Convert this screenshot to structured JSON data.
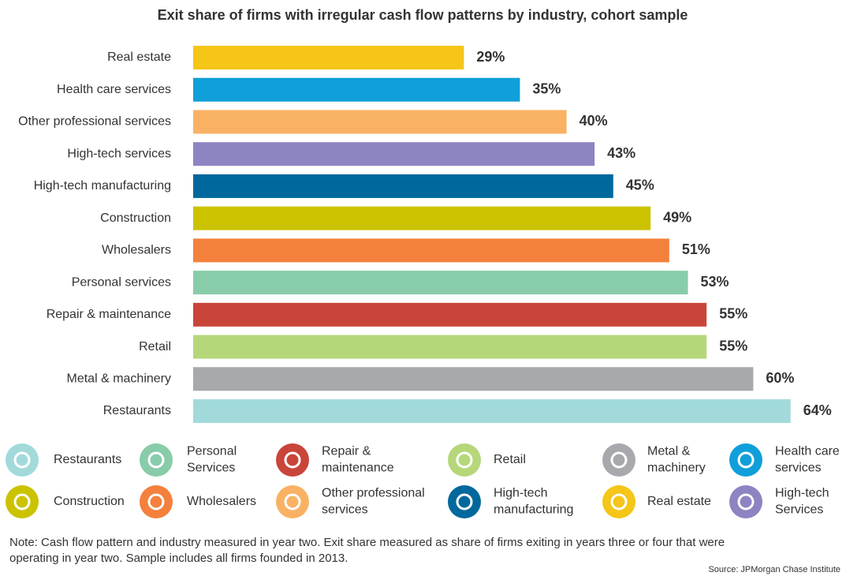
{
  "chart_data": {
    "type": "hbar",
    "title": "Exit share of firms with irregular cash flow patterns by industry, cohort sample",
    "categories": [
      "Real estate",
      "Health care services",
      "Other professional services",
      "High-tech services",
      "High-tech manufacturing",
      "Construction",
      "Wholesalers",
      "Personal services",
      "Repair & maintenance",
      "Retail",
      "Metal & machinery",
      "Restaurants"
    ],
    "values": [
      29,
      35,
      40,
      43,
      45,
      49,
      51,
      53,
      55,
      55,
      60,
      64
    ],
    "value_labels": [
      "29%",
      "35%",
      "40%",
      "43%",
      "45%",
      "49%",
      "51%",
      "53%",
      "55%",
      "55%",
      "60%",
      "64%"
    ],
    "colors": [
      "#f5c518",
      "#109fd9",
      "#f9b264",
      "#8d84c2",
      "#00689c",
      "#cbc300",
      "#f4803d",
      "#88ccaa",
      "#c9453a",
      "#b5d77a",
      "#a7a9ac",
      "#a2dadb"
    ],
    "label_colors": [
      "#a08a3a",
      "#1f86c0",
      "#c0572a",
      "#555566",
      "#0a4f86",
      "#9a8a3a",
      "#c0572a",
      "#5a8a7a",
      "#9a2a2a",
      "#7a9a3a",
      "#666666",
      "#4a9a9a"
    ],
    "legend": [
      {
        "lines": [
          "Restaurants"
        ],
        "color": "#a2dadb"
      },
      {
        "lines": [
          "Personal",
          "Services"
        ],
        "color": "#88ccaa"
      },
      {
        "lines": [
          "Repair &",
          "maintenance"
        ],
        "color": "#c9453a"
      },
      {
        "lines": [
          "Retail"
        ],
        "color": "#b5d77a"
      },
      {
        "lines": [
          "Metal &",
          "machinery"
        ],
        "color": "#a7a9ac"
      },
      {
        "lines": [
          "Health care",
          "services"
        ],
        "color": "#109fd9"
      },
      {
        "lines": [
          "Construction"
        ],
        "color": "#cbc300"
      },
      {
        "lines": [
          "Wholesalers"
        ],
        "color": "#f4803d"
      },
      {
        "lines": [
          "Other professional",
          "services"
        ],
        "color": "#f9b264"
      },
      {
        "lines": [
          "High-tech",
          "manufacturing"
        ],
        "color": "#00689c"
      },
      {
        "lines": [
          "Real estate"
        ],
        "color": "#f5c518"
      },
      {
        "lines": [
          "High-tech",
          "Services"
        ],
        "color": "#8d84c2"
      }
    ],
    "note": [
      "Note: Cash flow pattern and industry measured in year two. Exit share measured as share of firms exiting in years three or four that were",
      "operating in year two. Sample includes all firms founded in 2013."
    ],
    "source": "Source: JPMorgan Chase Institute"
  }
}
